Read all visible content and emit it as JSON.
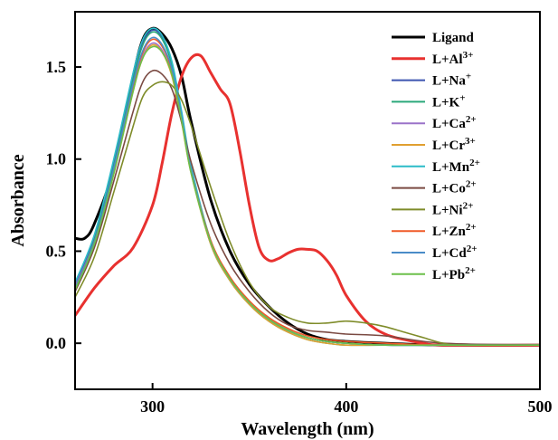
{
  "chart_data": {
    "type": "line",
    "title": "",
    "xlabel": "Wavelength (nm)",
    "ylabel": "Absorbance",
    "xlim": [
      260,
      500
    ],
    "ylim": [
      -0.25,
      1.8
    ],
    "xticks": [
      300,
      400,
      500
    ],
    "xtick_labels": [
      "300",
      "400",
      "500"
    ],
    "yticks": [
      0.0,
      0.5,
      1.0,
      1.5
    ],
    "ytick_labels": [
      "0.0",
      "0.5",
      "1.0",
      "1.5"
    ],
    "grid": false,
    "legend_position": "top-right",
    "series": [
      {
        "name": "Ligand",
        "legend_text": "Ligand",
        "legend_sup": "",
        "color": "#000000",
        "x": [
          260,
          265,
          270,
          280,
          290,
          295,
          300,
          305,
          310,
          315,
          320,
          330,
          340,
          350,
          360,
          370,
          380,
          390,
          400,
          420,
          450,
          500
        ],
        "y": [
          0.57,
          0.57,
          0.65,
          0.95,
          1.45,
          1.65,
          1.71,
          1.68,
          1.6,
          1.45,
          1.2,
          0.78,
          0.5,
          0.32,
          0.2,
          0.11,
          0.05,
          0.02,
          0.01,
          0.0,
          -0.01,
          -0.01
        ]
      },
      {
        "name": "L+Al3+",
        "legend_text": "L+Al",
        "legend_sup": "3+",
        "color": "#e8312f",
        "x": [
          260,
          270,
          280,
          290,
          300,
          305,
          310,
          315,
          320,
          325,
          330,
          335,
          340,
          345,
          350,
          355,
          360,
          365,
          370,
          375,
          380,
          385,
          390,
          395,
          400,
          410,
          420,
          430,
          440,
          450,
          500
        ],
        "y": [
          0.15,
          0.3,
          0.42,
          0.52,
          0.75,
          0.98,
          1.25,
          1.45,
          1.55,
          1.56,
          1.47,
          1.38,
          1.3,
          1.05,
          0.75,
          0.52,
          0.45,
          0.46,
          0.49,
          0.51,
          0.51,
          0.5,
          0.45,
          0.37,
          0.26,
          0.12,
          0.05,
          0.02,
          0.0,
          -0.01,
          -0.01
        ]
      },
      {
        "name": "L+Na+",
        "legend_text": "L+Na",
        "legend_sup": "+",
        "color": "#3d55b0",
        "x": [
          260,
          270,
          280,
          290,
          295,
          300,
          305,
          310,
          315,
          320,
          330,
          340,
          350,
          360,
          370,
          380,
          390,
          400,
          420,
          450,
          500
        ],
        "y": [
          0.32,
          0.58,
          0.98,
          1.45,
          1.63,
          1.7,
          1.66,
          1.52,
          1.25,
          0.95,
          0.55,
          0.35,
          0.22,
          0.13,
          0.07,
          0.03,
          0.01,
          0.0,
          -0.01,
          -0.01,
          -0.01
        ]
      },
      {
        "name": "L+K+",
        "legend_text": "L+K",
        "legend_sup": "+",
        "color": "#2aa87a",
        "x": [
          260,
          270,
          280,
          290,
          295,
          300,
          305,
          310,
          315,
          320,
          330,
          340,
          350,
          360,
          370,
          380,
          390,
          400,
          420,
          450,
          500
        ],
        "y": [
          0.3,
          0.56,
          0.96,
          1.43,
          1.62,
          1.69,
          1.65,
          1.51,
          1.24,
          0.94,
          0.54,
          0.34,
          0.21,
          0.12,
          0.06,
          0.02,
          0.0,
          -0.01,
          -0.01,
          -0.01,
          -0.01
        ]
      },
      {
        "name": "L+Ca2+",
        "legend_text": "L+Ca",
        "legend_sup": "2+",
        "color": "#9b72c9",
        "x": [
          260,
          270,
          280,
          290,
          295,
          300,
          305,
          310,
          315,
          320,
          330,
          340,
          350,
          360,
          370,
          380,
          390,
          400,
          420,
          450,
          500
        ],
        "y": [
          0.31,
          0.55,
          0.93,
          1.38,
          1.56,
          1.63,
          1.59,
          1.46,
          1.21,
          0.93,
          0.55,
          0.35,
          0.22,
          0.13,
          0.07,
          0.03,
          0.01,
          0.0,
          -0.01,
          -0.01,
          -0.01
        ]
      },
      {
        "name": "L+Cr3+",
        "legend_text": "L+Cr",
        "legend_sup": "3+",
        "color": "#e0a030",
        "x": [
          260,
          270,
          280,
          290,
          295,
          300,
          305,
          310,
          315,
          320,
          330,
          340,
          350,
          360,
          370,
          380,
          390,
          400,
          420,
          450,
          500
        ],
        "y": [
          0.3,
          0.54,
          0.92,
          1.37,
          1.55,
          1.62,
          1.58,
          1.45,
          1.2,
          0.92,
          0.54,
          0.34,
          0.21,
          0.12,
          0.06,
          0.02,
          0.0,
          -0.01,
          -0.01,
          -0.01,
          -0.01
        ]
      },
      {
        "name": "L+Mn2+",
        "legend_text": "L+Mn",
        "legend_sup": "2+",
        "color": "#2bbcc8",
        "x": [
          260,
          270,
          280,
          290,
          295,
          300,
          305,
          310,
          315,
          320,
          330,
          340,
          350,
          360,
          370,
          380,
          390,
          400,
          420,
          450,
          500
        ],
        "y": [
          0.33,
          0.59,
          1.0,
          1.47,
          1.65,
          1.71,
          1.67,
          1.53,
          1.26,
          0.96,
          0.56,
          0.35,
          0.22,
          0.13,
          0.07,
          0.03,
          0.01,
          0.0,
          -0.01,
          -0.01,
          -0.01
        ]
      },
      {
        "name": "L+Co2+",
        "legend_text": "L+Co",
        "legend_sup": "2+",
        "color": "#7a4a42",
        "x": [
          260,
          270,
          280,
          290,
          295,
          300,
          305,
          310,
          315,
          320,
          330,
          340,
          350,
          360,
          370,
          380,
          390,
          400,
          420,
          450,
          500
        ],
        "y": [
          0.28,
          0.52,
          0.88,
          1.26,
          1.42,
          1.48,
          1.46,
          1.38,
          1.2,
          0.98,
          0.65,
          0.43,
          0.28,
          0.17,
          0.1,
          0.07,
          0.06,
          0.05,
          0.04,
          0.0,
          -0.01
        ]
      },
      {
        "name": "L+Ni2+",
        "legend_text": "L+Ni",
        "legend_sup": "2+",
        "color": "#7f8c2a",
        "x": [
          260,
          270,
          280,
          290,
          295,
          300,
          305,
          310,
          315,
          320,
          330,
          340,
          350,
          360,
          370,
          380,
          390,
          400,
          410,
          420,
          430,
          440,
          450,
          460,
          500
        ],
        "y": [
          0.25,
          0.47,
          0.82,
          1.18,
          1.34,
          1.4,
          1.42,
          1.4,
          1.32,
          1.18,
          0.85,
          0.55,
          0.33,
          0.2,
          0.14,
          0.11,
          0.11,
          0.12,
          0.11,
          0.09,
          0.06,
          0.03,
          0.0,
          -0.01,
          -0.01
        ]
      },
      {
        "name": "L+Zn2+",
        "legend_text": "L+Zn",
        "legend_sup": "2+",
        "color": "#f05a28",
        "x": [
          260,
          270,
          280,
          290,
          295,
          300,
          305,
          310,
          315,
          320,
          330,
          340,
          350,
          360,
          370,
          380,
          390,
          400,
          420,
          450,
          500
        ],
        "y": [
          0.3,
          0.55,
          0.94,
          1.4,
          1.58,
          1.65,
          1.61,
          1.48,
          1.22,
          0.93,
          0.56,
          0.36,
          0.23,
          0.14,
          0.08,
          0.04,
          0.02,
          0.01,
          0.0,
          -0.01,
          -0.01
        ]
      },
      {
        "name": "L+Cd2+",
        "legend_text": "L+Cd",
        "legend_sup": "2+",
        "color": "#4a8cc8",
        "x": [
          260,
          270,
          280,
          290,
          295,
          300,
          305,
          310,
          315,
          320,
          330,
          340,
          350,
          360,
          370,
          380,
          390,
          400,
          420,
          450,
          500
        ],
        "y": [
          0.3,
          0.55,
          0.95,
          1.41,
          1.59,
          1.66,
          1.62,
          1.49,
          1.23,
          0.93,
          0.55,
          0.35,
          0.22,
          0.13,
          0.07,
          0.03,
          0.01,
          0.0,
          -0.01,
          -0.01,
          -0.01
        ]
      },
      {
        "name": "L+Pb2+",
        "legend_text": "L+Pb",
        "legend_sup": "2+",
        "color": "#6cbf4a",
        "x": [
          260,
          270,
          280,
          290,
          295,
          300,
          305,
          310,
          315,
          320,
          330,
          340,
          350,
          360,
          370,
          380,
          390,
          400,
          420,
          450,
          500
        ],
        "y": [
          0.29,
          0.54,
          0.92,
          1.37,
          1.55,
          1.61,
          1.58,
          1.46,
          1.21,
          0.92,
          0.55,
          0.35,
          0.22,
          0.13,
          0.07,
          0.03,
          0.01,
          0.0,
          -0.01,
          -0.01,
          -0.01
        ]
      }
    ]
  }
}
